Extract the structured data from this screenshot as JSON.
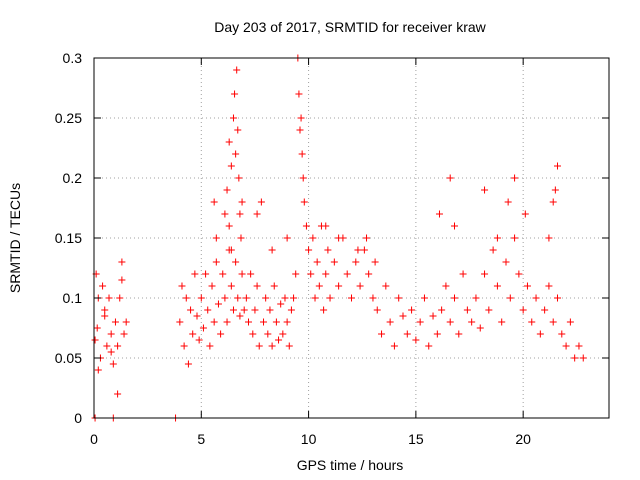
{
  "chart_data": {
    "type": "scatter",
    "title": "Day 203 of 2017, SRMTID for receiver kraw",
    "xlabel": "GPS time / hours",
    "ylabel": "SRMTID / TECUs",
    "xlim": [
      0,
      24
    ],
    "ylim": [
      0,
      0.3
    ],
    "grid": true,
    "marker": "+",
    "color": "#ff0000",
    "x_ticks": [
      0,
      5,
      10,
      15,
      20
    ],
    "x_tick_labels": [
      "0",
      "5",
      "10",
      "15",
      "20"
    ],
    "y_ticks": [
      0,
      0.05,
      0.1,
      0.15,
      0.2,
      0.25,
      0.3
    ],
    "y_tick_labels": [
      "0",
      "0.05",
      "0.1",
      "0.15",
      "0.2",
      "0.25",
      "0.3"
    ],
    "series": [
      {
        "name": "SRMTID",
        "x": [
          0.05,
          0.1,
          0.15,
          0.2,
          0.3,
          0.4,
          0.5,
          0.6,
          0.7,
          0.8,
          0.9,
          1.0,
          1.1,
          1.2,
          1.3,
          1.4,
          1.5,
          0.2,
          0.5,
          0.8,
          1.1,
          1.3,
          4.0,
          4.1,
          4.2,
          4.3,
          4.4,
          4.5,
          4.6,
          4.7,
          4.8,
          4.9,
          5.0,
          5.1,
          5.2,
          5.3,
          5.4,
          5.5,
          5.6,
          5.7,
          5.8,
          5.9,
          6.0,
          6.1,
          6.2,
          6.3,
          6.4,
          6.5,
          6.6,
          6.7,
          6.8,
          6.9,
          7.0,
          6.1,
          6.2,
          6.3,
          6.4,
          6.5,
          6.55,
          6.6,
          6.65,
          6.7,
          6.75,
          6.8,
          6.85,
          6.9,
          5.6,
          5.7,
          6.3,
          6.4,
          7.1,
          7.2,
          7.3,
          7.4,
          7.5,
          7.6,
          7.7,
          7.8,
          7.9,
          8.0,
          8.1,
          8.2,
          8.3,
          8.4,
          8.5,
          8.6,
          8.7,
          8.8,
          8.9,
          9.0,
          9.1,
          9.2,
          9.3,
          9.4,
          9.5,
          9.55,
          9.6,
          9.65,
          9.7,
          9.75,
          9.8,
          9.9,
          10.0,
          10.1,
          10.2,
          10.3,
          10.4,
          10.5,
          10.6,
          10.7,
          10.8,
          10.9,
          11.0,
          11.2,
          11.4,
          11.6,
          11.8,
          12.0,
          12.2,
          12.4,
          12.6,
          12.8,
          13.0,
          13.2,
          13.4,
          13.6,
          13.8,
          14.0,
          14.2,
          14.4,
          14.6,
          14.8,
          15.0,
          15.2,
          15.4,
          15.6,
          15.8,
          16.0,
          16.2,
          16.4,
          16.6,
          16.8,
          17.0,
          17.2,
          17.4,
          17.6,
          17.8,
          18.0,
          18.2,
          18.4,
          18.6,
          18.8,
          19.0,
          19.2,
          19.4,
          19.6,
          19.8,
          20.0,
          20.2,
          20.4,
          20.6,
          20.8,
          21.0,
          21.2,
          21.4,
          21.6,
          21.8,
          22.0,
          22.2,
          22.4,
          22.6,
          22.8,
          16.1,
          16.6,
          16.8,
          18.2,
          18.8,
          19.3,
          19.6,
          20.1,
          21.4,
          21.5,
          21.6,
          21.2,
          10.8,
          11.4,
          12.3,
          12.7,
          13.1,
          7.6,
          8.3,
          9.0,
          0.05,
          0.9,
          3.8
        ],
        "y": [
          0.065,
          0.12,
          0.075,
          0.1,
          0.05,
          0.11,
          0.09,
          0.06,
          0.1,
          0.07,
          0.045,
          0.08,
          0.06,
          0.1,
          0.115,
          0.07,
          0.08,
          0.04,
          0.085,
          0.055,
          0.02,
          0.13,
          0.08,
          0.11,
          0.06,
          0.1,
          0.045,
          0.09,
          0.07,
          0.12,
          0.085,
          0.065,
          0.1,
          0.075,
          0.12,
          0.09,
          0.06,
          0.11,
          0.08,
          0.13,
          0.095,
          0.07,
          0.12,
          0.1,
          0.08,
          0.14,
          0.11,
          0.09,
          0.13,
          0.1,
          0.085,
          0.12,
          0.09,
          0.17,
          0.19,
          0.23,
          0.21,
          0.25,
          0.27,
          0.22,
          0.29,
          0.24,
          0.2,
          0.17,
          0.15,
          0.18,
          0.18,
          0.15,
          0.16,
          0.14,
          0.1,
          0.08,
          0.12,
          0.07,
          0.09,
          0.11,
          0.06,
          0.18,
          0.08,
          0.1,
          0.07,
          0.09,
          0.06,
          0.11,
          0.08,
          0.065,
          0.095,
          0.07,
          0.1,
          0.08,
          0.06,
          0.09,
          0.1,
          0.12,
          0.3,
          0.27,
          0.24,
          0.25,
          0.22,
          0.2,
          0.18,
          0.16,
          0.14,
          0.12,
          0.15,
          0.1,
          0.13,
          0.11,
          0.16,
          0.09,
          0.12,
          0.14,
          0.1,
          0.13,
          0.11,
          0.15,
          0.12,
          0.1,
          0.13,
          0.11,
          0.14,
          0.12,
          0.1,
          0.09,
          0.07,
          0.11,
          0.08,
          0.06,
          0.1,
          0.085,
          0.07,
          0.09,
          0.065,
          0.08,
          0.1,
          0.06,
          0.085,
          0.07,
          0.09,
          0.11,
          0.08,
          0.1,
          0.07,
          0.12,
          0.09,
          0.08,
          0.1,
          0.075,
          0.12,
          0.09,
          0.14,
          0.11,
          0.08,
          0.13,
          0.1,
          0.15,
          0.12,
          0.09,
          0.11,
          0.08,
          0.1,
          0.07,
          0.09,
          0.11,
          0.08,
          0.1,
          0.07,
          0.06,
          0.08,
          0.05,
          0.06,
          0.05,
          0.17,
          0.2,
          0.16,
          0.19,
          0.15,
          0.18,
          0.2,
          0.17,
          0.18,
          0.19,
          0.21,
          0.15,
          0.16,
          0.15,
          0.14,
          0.15,
          0.13,
          0.17,
          0.14,
          0.15,
          0.0,
          0.0,
          0.0
        ],
        "color": "#ff0000"
      }
    ]
  }
}
